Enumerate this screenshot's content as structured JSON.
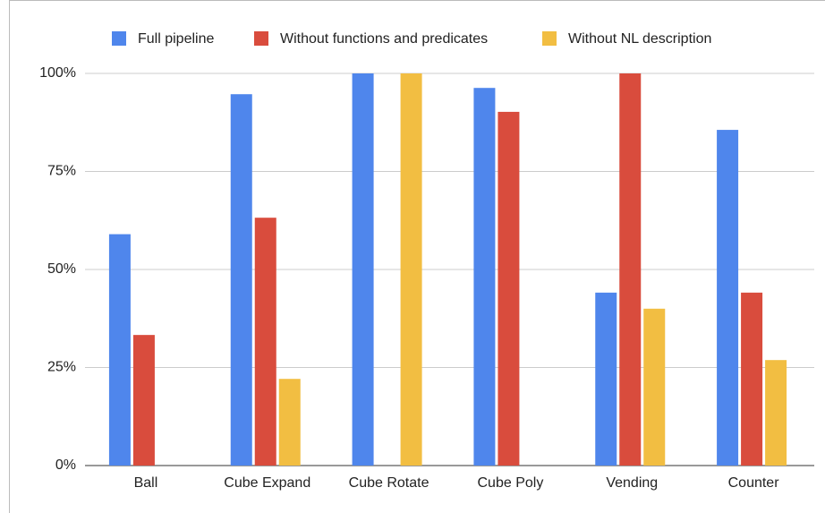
{
  "chart_data": {
    "type": "bar",
    "categories": [
      "Ball",
      "Cube Expand",
      "Cube Rotate",
      "Cube Poly",
      "Vending",
      "Counter"
    ],
    "series": [
      {
        "name": "Full pipeline",
        "color": "#4f86ec",
        "values": [
          59,
          94.7,
          100,
          96.3,
          44.1,
          85.6
        ]
      },
      {
        "name": "Without functions and predicates",
        "color": "#d94c3d",
        "values": [
          33.3,
          63.2,
          0,
          90.2,
          100,
          44.1
        ]
      },
      {
        "name": "Without NL description",
        "color": "#f2be42",
        "values": [
          0,
          22.1,
          100,
          0,
          40,
          26.9
        ]
      }
    ],
    "ylim": [
      0,
      100
    ],
    "yticks": [
      {
        "value": 0,
        "label": "0%"
      },
      {
        "value": 25,
        "label": "25%"
      },
      {
        "value": 50,
        "label": "50%"
      },
      {
        "value": 75,
        "label": "75%"
      },
      {
        "value": 100,
        "label": "100%"
      }
    ],
    "grid": true,
    "legend": "top"
  }
}
